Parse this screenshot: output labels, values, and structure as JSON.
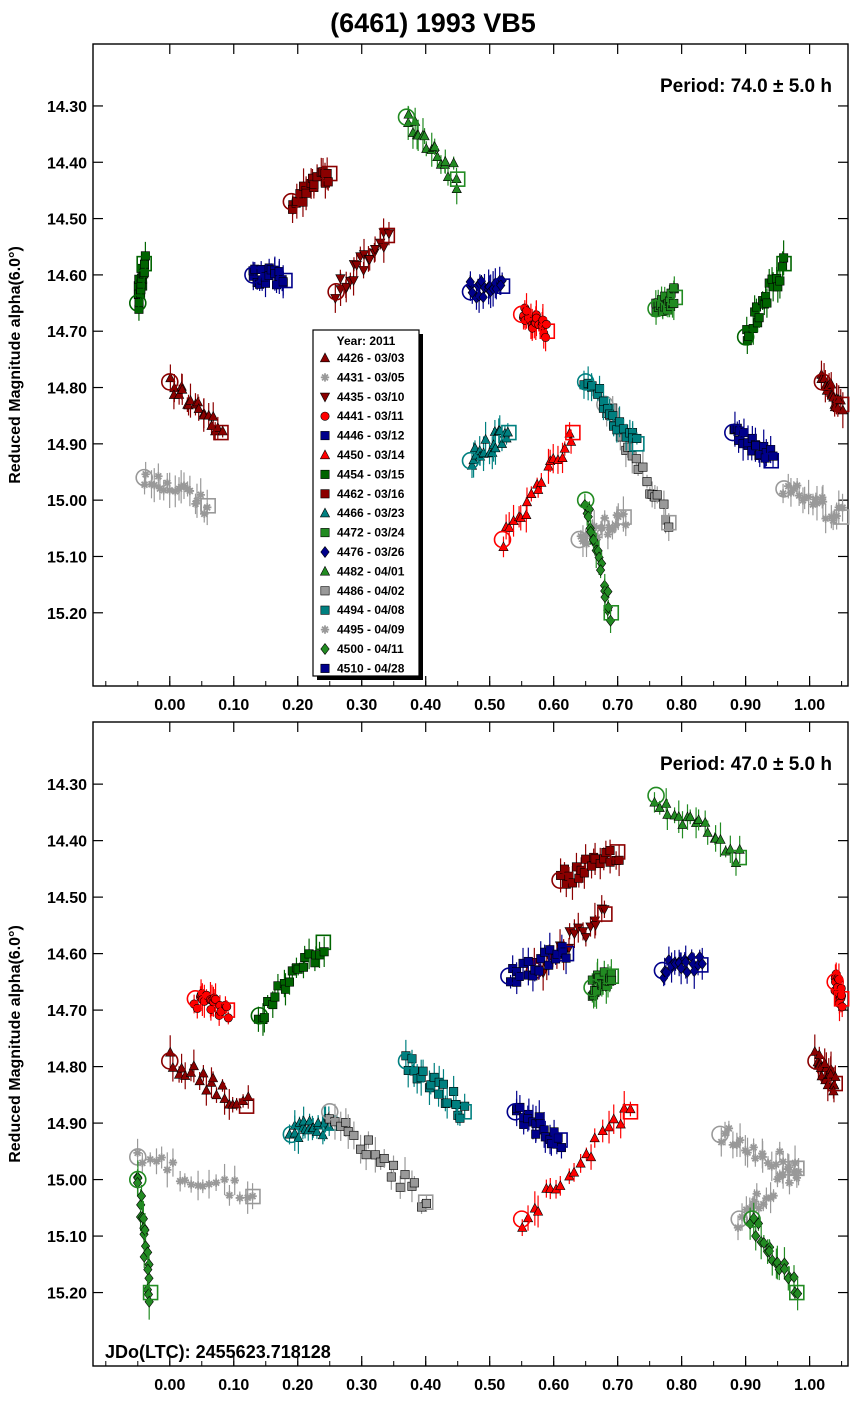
{
  "title": "(6461) 1993 VB5",
  "colors": {
    "4426": "#8b0000",
    "4431": "#999999",
    "4435": "#8b0000",
    "4441": "#ff0000",
    "4446": "#00008b",
    "4450": "#ff0000",
    "4454": "#006400",
    "4462": "#8b0000",
    "4466": "#008080",
    "4472": "#228b22",
    "4476": "#00008b",
    "4482": "#228b22",
    "4486": "#999999",
    "4494": "#008080",
    "4495": "#999999",
    "4500": "#228b22",
    "4510": "#00008b"
  },
  "legend": {
    "title": "Year: 2011",
    "entries": [
      {
        "id": "4426",
        "label": "4426 - 03/03",
        "marker": "triangle"
      },
      {
        "id": "4431",
        "label": "4431 - 03/05",
        "marker": "star"
      },
      {
        "id": "4435",
        "label": "4435 - 03/10",
        "marker": "triangle-down"
      },
      {
        "id": "4441",
        "label": "4441 - 03/11",
        "marker": "circle"
      },
      {
        "id": "4446",
        "label": "4446 - 03/12",
        "marker": "square"
      },
      {
        "id": "4450",
        "label": "4450 - 03/14",
        "marker": "triangle"
      },
      {
        "id": "4454",
        "label": "4454 - 03/15",
        "marker": "square"
      },
      {
        "id": "4462",
        "label": "4462 - 03/16",
        "marker": "square"
      },
      {
        "id": "4466",
        "label": "4466 - 03/23",
        "marker": "triangle"
      },
      {
        "id": "4472",
        "label": "4472 - 03/24",
        "marker": "square"
      },
      {
        "id": "4476",
        "label": "4476 - 03/26",
        "marker": "diamond"
      },
      {
        "id": "4482",
        "label": "4482 - 04/01",
        "marker": "triangle"
      },
      {
        "id": "4486",
        "label": "4486 - 04/02",
        "marker": "square"
      },
      {
        "id": "4494",
        "label": "4494 - 04/08",
        "marker": "square"
      },
      {
        "id": "4495",
        "label": "4495 - 04/09",
        "marker": "star"
      },
      {
        "id": "4500",
        "label": "4500 - 04/11",
        "marker": "diamond"
      },
      {
        "id": "4510",
        "label": "4510 - 04/28",
        "marker": "square"
      }
    ]
  },
  "chart_data": [
    {
      "type": "scatter",
      "title": "(6461) 1993 VB5",
      "annotation": "Period: 74.0 ± 5.0 h",
      "xlabel": "",
      "ylabel": "Reduced Magnitude alpha(6.0°)",
      "xlim": [
        -0.12,
        1.06
      ],
      "ylim": [
        15.33,
        14.19
      ],
      "y_inverted": true,
      "xticks": [
        "0.00",
        "0.10",
        "0.20",
        "0.30",
        "0.40",
        "0.50",
        "0.60",
        "0.70",
        "0.80",
        "0.90",
        "1.00"
      ],
      "yticks": [
        "14.30",
        "14.40",
        "14.50",
        "14.60",
        "14.70",
        "14.80",
        "14.90",
        "15.00",
        "15.10",
        "15.20"
      ],
      "series": [
        {
          "id": "4426",
          "segments": [
            {
              "x": [
                0.0,
                0.08
              ],
              "y": [
                14.79,
                14.88
              ]
            },
            {
              "x": [
                1.02,
                1.05
              ],
              "y": [
                14.79,
                14.83
              ]
            }
          ]
        },
        {
          "id": "4431",
          "segments": [
            {
              "x": [
                -0.04,
                0.06
              ],
              "y": [
                14.96,
                15.01
              ]
            },
            {
              "x": [
                0.96,
                1.05
              ],
              "y": [
                14.98,
                15.03
              ]
            }
          ]
        },
        {
          "id": "4435",
          "segments": [
            {
              "x": [
                0.26,
                0.34
              ],
              "y": [
                14.63,
                14.53
              ]
            }
          ]
        },
        {
          "id": "4441",
          "segments": [
            {
              "x": [
                0.55,
                0.59
              ],
              "y": [
                14.67,
                14.7
              ]
            }
          ]
        },
        {
          "id": "4446",
          "segments": [
            {
              "x": [
                0.13,
                0.18
              ],
              "y": [
                14.6,
                14.61
              ]
            }
          ]
        },
        {
          "id": "4450",
          "segments": [
            {
              "x": [
                0.52,
                0.63
              ],
              "y": [
                15.07,
                14.88
              ]
            }
          ]
        },
        {
          "id": "4454",
          "segments": [
            {
              "x": [
                -0.05,
                -0.04
              ],
              "y": [
                14.65,
                14.58
              ]
            },
            {
              "x": [
                0.9,
                0.96
              ],
              "y": [
                14.71,
                14.58
              ]
            }
          ]
        },
        {
          "id": "4462",
          "segments": [
            {
              "x": [
                0.19,
                0.25
              ],
              "y": [
                14.47,
                14.42
              ]
            }
          ]
        },
        {
          "id": "4466",
          "segments": [
            {
              "x": [
                0.47,
                0.53
              ],
              "y": [
                14.93,
                14.88
              ]
            }
          ]
        },
        {
          "id": "4472",
          "segments": [
            {
              "x": [
                0.76,
                0.79
              ],
              "y": [
                14.66,
                14.64
              ]
            }
          ]
        },
        {
          "id": "4476",
          "segments": [
            {
              "x": [
                0.47,
                0.52
              ],
              "y": [
                14.63,
                14.62
              ]
            }
          ]
        },
        {
          "id": "4482",
          "segments": [
            {
              "x": [
                0.37,
                0.45
              ],
              "y": [
                14.32,
                14.43
              ]
            }
          ]
        },
        {
          "id": "4486",
          "segments": [
            {
              "x": [
                0.68,
                0.78
              ],
              "y": [
                14.83,
                15.04
              ]
            }
          ]
        },
        {
          "id": "4494",
          "segments": [
            {
              "x": [
                0.65,
                0.73
              ],
              "y": [
                14.79,
                14.9
              ]
            }
          ]
        },
        {
          "id": "4495",
          "segments": [
            {
              "x": [
                0.64,
                0.71
              ],
              "y": [
                15.07,
                15.03
              ]
            }
          ]
        },
        {
          "id": "4500",
          "segments": [
            {
              "x": [
                0.65,
                0.69
              ],
              "y": [
                15.0,
                15.2
              ]
            }
          ]
        },
        {
          "id": "4510",
          "segments": [
            {
              "x": [
                0.88,
                0.94
              ],
              "y": [
                14.88,
                14.93
              ]
            }
          ]
        }
      ]
    },
    {
      "type": "scatter",
      "annotation": "Period: 47.0 ± 5.0 h",
      "footnote": "JDo(LTC): 2455623.718128",
      "xlabel": "",
      "ylabel": "Reduced Magnitude alpha(6.0°)",
      "xlim": [
        -0.12,
        1.06
      ],
      "ylim": [
        15.33,
        14.19
      ],
      "y_inverted": true,
      "xticks": [
        "0.00",
        "0.10",
        "0.20",
        "0.30",
        "0.40",
        "0.50",
        "0.60",
        "0.70",
        "0.80",
        "0.90",
        "1.00"
      ],
      "yticks": [
        "14.30",
        "14.40",
        "14.50",
        "14.60",
        "14.70",
        "14.80",
        "14.90",
        "15.00",
        "15.10",
        "15.20"
      ],
      "series": [
        {
          "id": "4426",
          "segments": [
            {
              "x": [
                0.0,
                0.12
              ],
              "y": [
                14.79,
                14.87
              ]
            },
            {
              "x": [
                1.01,
                1.04
              ],
              "y": [
                14.79,
                14.83
              ]
            }
          ]
        },
        {
          "id": "4431",
          "segments": [
            {
              "x": [
                -0.05,
                0.13
              ],
              "y": [
                14.96,
                15.03
              ]
            },
            {
              "x": [
                0.86,
                0.98
              ],
              "y": [
                14.92,
                14.98
              ]
            }
          ]
        },
        {
          "id": "4435",
          "segments": [
            {
              "x": [
                0.57,
                0.68
              ],
              "y": [
                14.63,
                14.53
              ]
            }
          ]
        },
        {
          "id": "4441",
          "segments": [
            {
              "x": [
                0.04,
                0.09
              ],
              "y": [
                14.68,
                14.7
              ]
            },
            {
              "x": [
                1.04,
                1.05
              ],
              "y": [
                14.65,
                14.68
              ]
            }
          ]
        },
        {
          "id": "4446",
          "segments": [
            {
              "x": [
                0.53,
                0.62
              ],
              "y": [
                14.64,
                14.6
              ]
            }
          ]
        },
        {
          "id": "4450",
          "segments": [
            {
              "x": [
                0.55,
                0.72
              ],
              "y": [
                15.07,
                14.88
              ]
            }
          ]
        },
        {
          "id": "4454",
          "segments": [
            {
              "x": [
                0.14,
                0.24
              ],
              "y": [
                14.71,
                14.58
              ]
            }
          ]
        },
        {
          "id": "4462",
          "segments": [
            {
              "x": [
                0.61,
                0.7
              ],
              "y": [
                14.47,
                14.42
              ]
            }
          ]
        },
        {
          "id": "4466",
          "segments": [
            {
              "x": [
                0.19,
                0.25
              ],
              "y": [
                14.92,
                14.9
              ]
            }
          ]
        },
        {
          "id": "4472",
          "segments": [
            {
              "x": [
                0.66,
                0.69
              ],
              "y": [
                14.66,
                14.64
              ]
            }
          ]
        },
        {
          "id": "4476",
          "segments": [
            {
              "x": [
                0.77,
                0.83
              ],
              "y": [
                14.63,
                14.62
              ]
            }
          ]
        },
        {
          "id": "4482",
          "segments": [
            {
              "x": [
                0.76,
                0.89
              ],
              "y": [
                14.32,
                14.43
              ]
            }
          ]
        },
        {
          "id": "4486",
          "segments": [
            {
              "x": [
                0.25,
                0.4
              ],
              "y": [
                14.88,
                15.04
              ]
            }
          ]
        },
        {
          "id": "4494",
          "segments": [
            {
              "x": [
                0.37,
                0.46
              ],
              "y": [
                14.79,
                14.88
              ]
            }
          ]
        },
        {
          "id": "4495",
          "segments": [
            {
              "x": [
                0.89,
                0.98
              ],
              "y": [
                15.07,
                14.98
              ]
            }
          ]
        },
        {
          "id": "4500",
          "segments": [
            {
              "x": [
                -0.05,
                -0.03
              ],
              "y": [
                15.0,
                15.2
              ]
            },
            {
              "x": [
                0.91,
                0.98
              ],
              "y": [
                15.07,
                15.2
              ]
            }
          ]
        },
        {
          "id": "4510",
          "segments": [
            {
              "x": [
                0.54,
                0.61
              ],
              "y": [
                14.88,
                14.93
              ]
            }
          ]
        }
      ]
    }
  ]
}
